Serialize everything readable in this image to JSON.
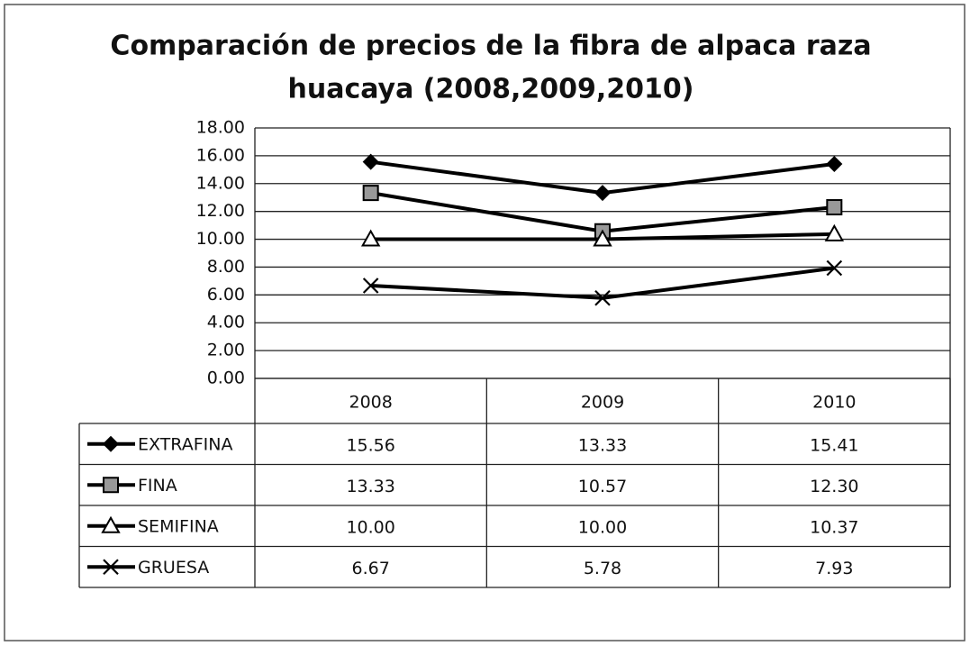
{
  "chart_data": {
    "type": "line",
    "title": [
      "Comparación de precios de la fibra de alpaca raza",
      "huacaya  (2008,2009,2010)"
    ],
    "categories": [
      "2008",
      "2009",
      "2010"
    ],
    "series": [
      {
        "name": "EXTRAFINA",
        "color": "#000000",
        "marker": "diamond",
        "values": [
          15.56,
          13.33,
          15.41
        ],
        "value_labels": [
          "15.56",
          "13.33",
          "15.41"
        ]
      },
      {
        "name": "FINA",
        "color": "#000000",
        "marker": "square",
        "values": [
          13.33,
          10.57,
          12.3
        ],
        "value_labels": [
          "13.33",
          "10.57",
          "12.30"
        ]
      },
      {
        "name": "SEMIFINA",
        "color": "#000000",
        "marker": "triangle",
        "values": [
          10,
          10,
          10.37
        ],
        "value_labels": [
          "10.00",
          "10.00",
          "10.37"
        ]
      },
      {
        "name": "GRUESA",
        "color": "#000000",
        "marker": "x",
        "values": [
          6.67,
          5.78,
          7.93
        ],
        "value_labels": [
          "6.67",
          "5.78",
          "7.93"
        ]
      }
    ],
    "ylim": [
      0,
      18
    ],
    "yticks": [
      {
        "value": 0,
        "label": "0.00"
      },
      {
        "value": 2,
        "label": "2.00"
      },
      {
        "value": 4,
        "label": "4.00"
      },
      {
        "value": 6,
        "label": "6.00"
      },
      {
        "value": 8,
        "label": "8.00"
      },
      {
        "value": 10,
        "label": "10.00"
      },
      {
        "value": 12,
        "label": "12.00"
      },
      {
        "value": 14,
        "label": "14.00"
      },
      {
        "value": 16,
        "label": "16.00"
      },
      {
        "value": 18,
        "label": "18.00"
      }
    ],
    "grid": true,
    "data_table": true
  }
}
